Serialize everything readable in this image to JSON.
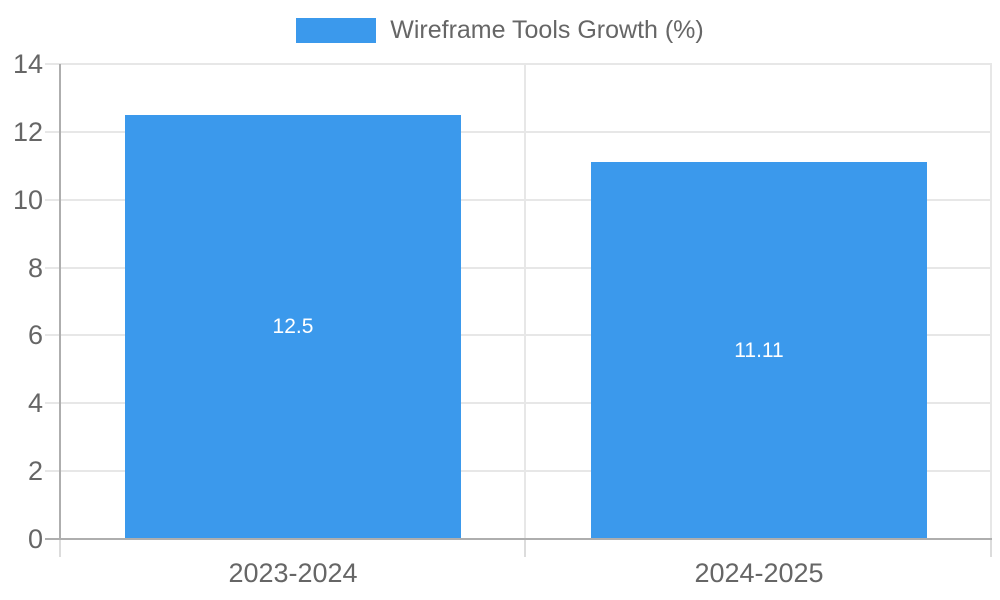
{
  "chart_data": {
    "type": "bar",
    "title": "",
    "categories": [
      "2023-2024",
      "2024-2025"
    ],
    "series": [
      {
        "name": "Wireframe Tools Growth (%)",
        "values": [
          12.5,
          11.11
        ]
      }
    ],
    "bar_value_labels": [
      "12.5",
      "11.11"
    ],
    "legend": {
      "position": "top",
      "label": "Wireframe Tools Growth (%)"
    },
    "xlabel": "",
    "ylabel": "",
    "ylim": [
      0,
      14
    ],
    "yticks": [
      0,
      2,
      4,
      6,
      8,
      10,
      12,
      14
    ],
    "grid": true
  },
  "colors": {
    "bar": "#3B99EC",
    "bar_label_text": "#FFFFFF",
    "legend_text": "#666666",
    "tick_text": "#666666",
    "gridline": "#E7E7E7",
    "axis_line": "#AEAEAE",
    "below_axis_tick": "#DCDCDC",
    "background": "#FFFFFF"
  }
}
